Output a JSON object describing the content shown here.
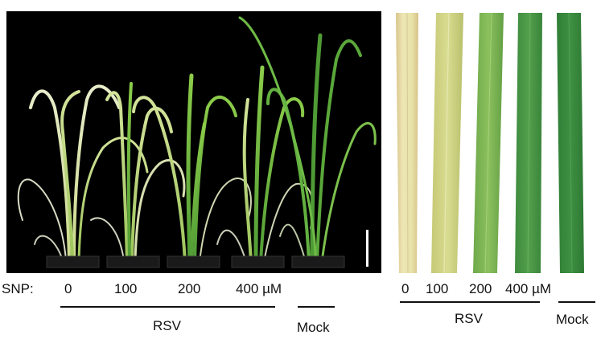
{
  "panel_left": {
    "snp_label": "SNP:",
    "doses": [
      "0",
      "100",
      "200",
      "400 µM"
    ],
    "group_label": "RSV",
    "control_label": "Mock"
  },
  "panel_right": {
    "doses": [
      "0",
      "100",
      "200",
      "400 µM"
    ],
    "group_label": "RSV",
    "control_label": "Mock"
  },
  "colors": {
    "photo_background": "#000000",
    "leaf_healthy": "#3f8f3c",
    "leaf_chlorotic": "#e9e2a6",
    "scale_bar": "#ffffff"
  }
}
